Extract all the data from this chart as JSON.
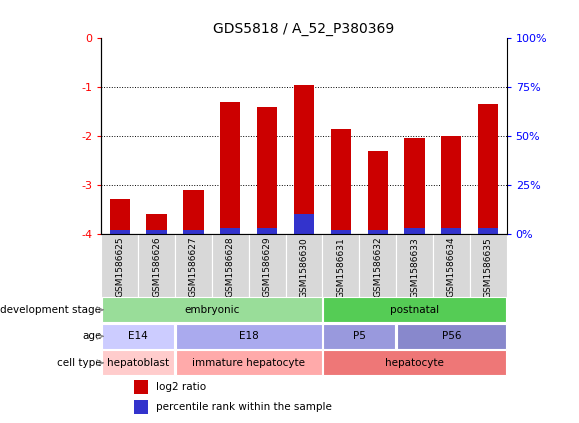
{
  "title": "GDS5818 / A_52_P380369",
  "samples": [
    "GSM1586625",
    "GSM1586626",
    "GSM1586627",
    "GSM1586628",
    "GSM1586629",
    "GSM1586630",
    "GSM1586631",
    "GSM1586632",
    "GSM1586633",
    "GSM1586634",
    "GSM1586635"
  ],
  "log2_ratio": [
    -3.3,
    -3.6,
    -3.1,
    -1.3,
    -1.4,
    -0.95,
    -1.85,
    -2.3,
    -2.05,
    -2.0,
    -1.35
  ],
  "percentile_rank": [
    2,
    2,
    2,
    3,
    3,
    10,
    2,
    2,
    3,
    3,
    3
  ],
  "left_ylim": [
    -4,
    0
  ],
  "left_yticks": [
    -4,
    -3,
    -2,
    -1,
    0
  ],
  "right_ylim": [
    0,
    100
  ],
  "right_yticks": [
    0,
    25,
    50,
    75,
    100
  ],
  "bar_color_red": "#cc0000",
  "bar_color_blue": "#3333cc",
  "bg_color": "#ffffff",
  "plot_bg_color": "#ffffff",
  "tick_label_bg": "#d8d8d8",
  "annotation_rows": [
    {
      "label": "development stage",
      "groups": [
        {
          "text": "embryonic",
          "start": 0,
          "end": 5,
          "color": "#99dd99"
        },
        {
          "text": "postnatal",
          "start": 6,
          "end": 10,
          "color": "#55cc55"
        }
      ]
    },
    {
      "label": "age",
      "groups": [
        {
          "text": "E14",
          "start": 0,
          "end": 1,
          "color": "#ccccff"
        },
        {
          "text": "E18",
          "start": 2,
          "end": 5,
          "color": "#aaaaee"
        },
        {
          "text": "P5",
          "start": 6,
          "end": 7,
          "color": "#9999dd"
        },
        {
          "text": "P56",
          "start": 8,
          "end": 10,
          "color": "#8888cc"
        }
      ]
    },
    {
      "label": "cell type",
      "groups": [
        {
          "text": "hepatoblast",
          "start": 0,
          "end": 1,
          "color": "#ffcccc"
        },
        {
          "text": "immature hepatocyte",
          "start": 2,
          "end": 5,
          "color": "#ffaaaa"
        },
        {
          "text": "hepatocyte",
          "start": 6,
          "end": 10,
          "color": "#ee7777"
        }
      ]
    }
  ],
  "legend_items": [
    {
      "label": "log2 ratio",
      "color": "#cc0000"
    },
    {
      "label": "percentile rank within the sample",
      "color": "#3333cc"
    }
  ]
}
